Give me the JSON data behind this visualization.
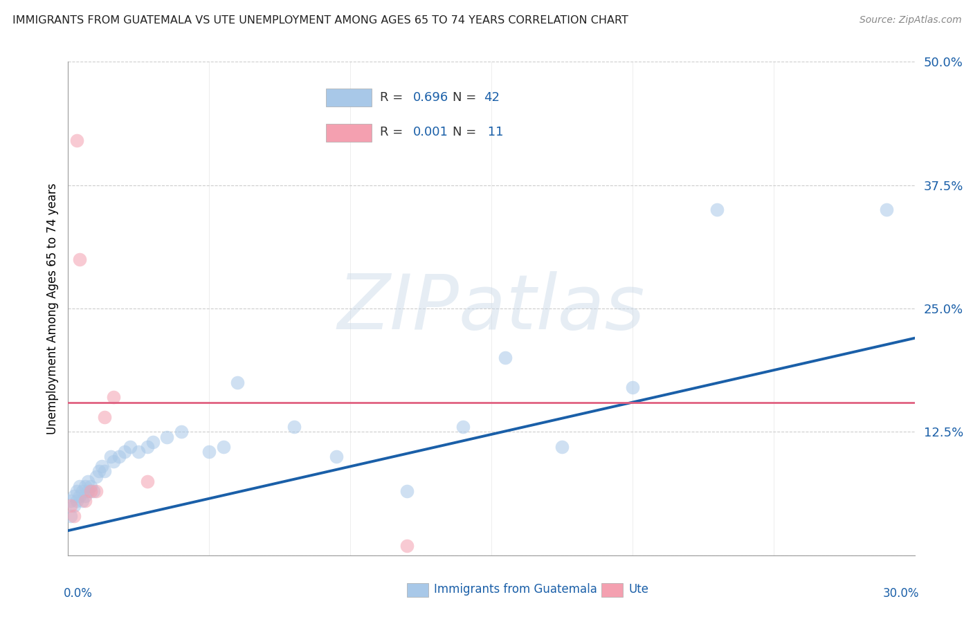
{
  "title": "IMMIGRANTS FROM GUATEMALA VS UTE UNEMPLOYMENT AMONG AGES 65 TO 74 YEARS CORRELATION CHART",
  "source": "Source: ZipAtlas.com",
  "ylabel": "Unemployment Among Ages 65 to 74 years",
  "yticks": [
    0.0,
    0.125,
    0.25,
    0.375,
    0.5
  ],
  "ytick_labels": [
    "",
    "12.5%",
    "25.0%",
    "37.5%",
    "50.0%"
  ],
  "xlim": [
    0.0,
    0.3
  ],
  "ylim": [
    0.0,
    0.5
  ],
  "watermark": "ZIPatlas",
  "blue_color": "#a8c8e8",
  "pink_color": "#f4a0b0",
  "trend_blue": "#1a5fa8",
  "trend_pink": "#e06080",
  "label_blue": "#1a5fa8",
  "blue_scatter_x": [
    0.001,
    0.001,
    0.002,
    0.002,
    0.003,
    0.003,
    0.004,
    0.004,
    0.005,
    0.005,
    0.006,
    0.006,
    0.007,
    0.007,
    0.008,
    0.009,
    0.01,
    0.011,
    0.012,
    0.013,
    0.015,
    0.016,
    0.018,
    0.02,
    0.022,
    0.025,
    0.028,
    0.03,
    0.035,
    0.04,
    0.05,
    0.055,
    0.06,
    0.08,
    0.095,
    0.12,
    0.14,
    0.155,
    0.175,
    0.2,
    0.23,
    0.29
  ],
  "blue_scatter_y": [
    0.04,
    0.055,
    0.05,
    0.06,
    0.055,
    0.065,
    0.06,
    0.07,
    0.065,
    0.055,
    0.06,
    0.07,
    0.065,
    0.075,
    0.07,
    0.065,
    0.08,
    0.085,
    0.09,
    0.085,
    0.1,
    0.095,
    0.1,
    0.105,
    0.11,
    0.105,
    0.11,
    0.115,
    0.12,
    0.125,
    0.105,
    0.11,
    0.175,
    0.13,
    0.1,
    0.065,
    0.13,
    0.2,
    0.11,
    0.17,
    0.35,
    0.35
  ],
  "pink_scatter_x": [
    0.001,
    0.002,
    0.003,
    0.004,
    0.006,
    0.008,
    0.01,
    0.013,
    0.016,
    0.028,
    0.12
  ],
  "pink_scatter_y": [
    0.05,
    0.04,
    0.42,
    0.3,
    0.055,
    0.065,
    0.065,
    0.14,
    0.16,
    0.075,
    0.01
  ],
  "blue_trend_x": [
    0.0,
    0.3
  ],
  "blue_trend_y": [
    0.025,
    0.22
  ],
  "pink_trend_y": 0.155
}
